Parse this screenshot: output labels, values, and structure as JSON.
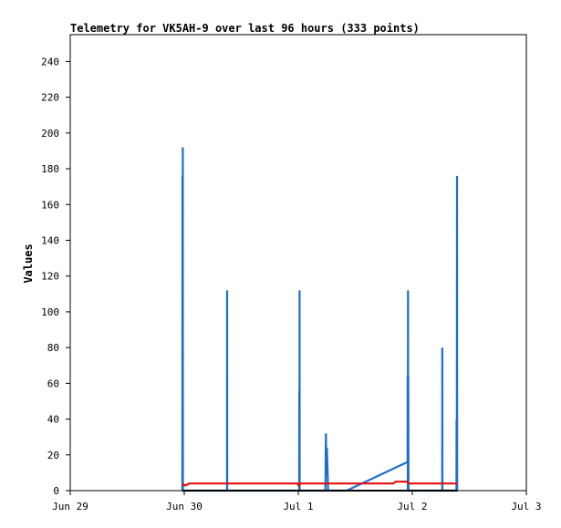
{
  "chart_data": {
    "type": "line",
    "title": "Telemetry for VK5AH-9 over last 96 hours (333 points)",
    "xlabel": "",
    "ylabel": "Values",
    "x_range_hours": [
      0,
      96
    ],
    "x_ticks": [
      {
        "label": "Jun 29",
        "hours": 0
      },
      {
        "label": "Jun 30",
        "hours": 24
      },
      {
        "label": "Jul 1",
        "hours": 48
      },
      {
        "label": "Jul 2",
        "hours": 72
      },
      {
        "label": "Jul 3",
        "hours": 96
      }
    ],
    "ylim": [
      0,
      255
    ],
    "y_ticks": [
      0,
      20,
      40,
      60,
      80,
      100,
      120,
      140,
      160,
      180,
      200,
      220,
      240
    ],
    "grid": false,
    "colors": {
      "blue": "#1e6fc9",
      "red": "#e01010",
      "black": "#000000",
      "frame": "#000000"
    },
    "series": [
      {
        "color": "blue",
        "x": [
          23.6,
          23.62,
          23.64,
          23.7,
          23.72,
          23.74,
          23.76,
          23.78,
          23.8,
          33.0,
          33.02,
          33.04,
          33.06,
          48.2,
          48.22,
          48.24,
          48.26,
          48.28,
          48.3,
          48.32,
          53.7,
          53.74,
          53.78,
          53.82,
          53.9,
          54.0,
          54.1,
          54.2,
          54.26,
          58.2,
          71.0,
          71.02,
          71.06,
          71.1,
          71.14,
          71.16,
          71.2,
          71.24,
          78.3,
          78.32,
          78.34,
          78.36,
          81.3,
          81.32,
          81.36,
          81.4,
          81.44,
          81.48,
          81.52
        ],
        "y": [
          0,
          176,
          0,
          192,
          0,
          0,
          0,
          0,
          0,
          0,
          112,
          0,
          0,
          0,
          56,
          0,
          112,
          0,
          0,
          0,
          0,
          8,
          24,
          32,
          8,
          24,
          16,
          8,
          0,
          0,
          16,
          64,
          0,
          112,
          0,
          64,
          0,
          0,
          0,
          80,
          0,
          0,
          0,
          40,
          0,
          176,
          0,
          0,
          0
        ]
      },
      {
        "color": "red",
        "x": [
          23.6,
          24.0,
          24.4,
          25.0,
          30.0,
          40.0,
          47.9,
          48.0,
          48.2,
          48.4,
          48.6,
          49.0,
          55.0,
          62.0,
          68.0,
          68.5,
          70.0,
          70.8,
          71.3,
          75.0,
          81.5
        ],
        "y": [
          4,
          3,
          3,
          4,
          4,
          4,
          4,
          3,
          3,
          4,
          4,
          4,
          4,
          4,
          4,
          5,
          5,
          5,
          4,
          4,
          4
        ]
      },
      {
        "color": "black",
        "x": [
          23.6,
          81.5
        ],
        "y": [
          0,
          0
        ]
      }
    ]
  }
}
